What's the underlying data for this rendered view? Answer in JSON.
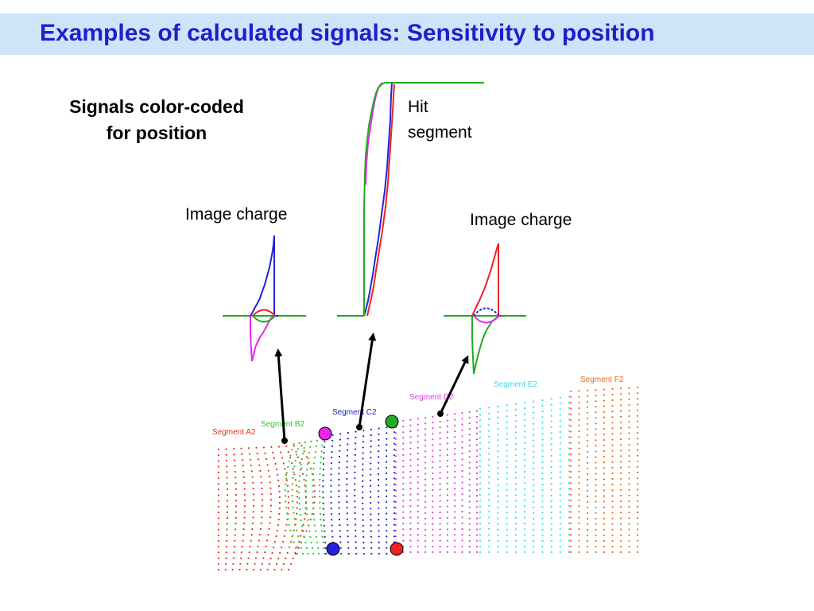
{
  "header": {
    "title": "Examples of calculated signals: Sensitivity to position"
  },
  "subtitle": {
    "line1": "Signals color-coded",
    "line2": "for position"
  },
  "labels": {
    "image_charge_left": "Image charge",
    "image_charge_right": "Image charge",
    "hit_line1": "Hit",
    "hit_line2": "segment"
  },
  "segments": [
    {
      "name": "Segment A2",
      "color": "#e8321e"
    },
    {
      "name": "Segment B2",
      "color": "#1ed21e"
    },
    {
      "name": "Segment C2",
      "color": "#2222cc"
    },
    {
      "name": "Segment D2",
      "color": "#e040e0"
    },
    {
      "name": "Segment E2",
      "color": "#33e0e8"
    },
    {
      "name": "Segment F2",
      "color": "#f06a18"
    }
  ],
  "colors": {
    "title": "#1f1fcc",
    "title_bar": "#cfe4f8",
    "green": "#22aa22",
    "blue": "#2222dd",
    "red": "#ee2222",
    "magenta": "#ee22ee"
  }
}
